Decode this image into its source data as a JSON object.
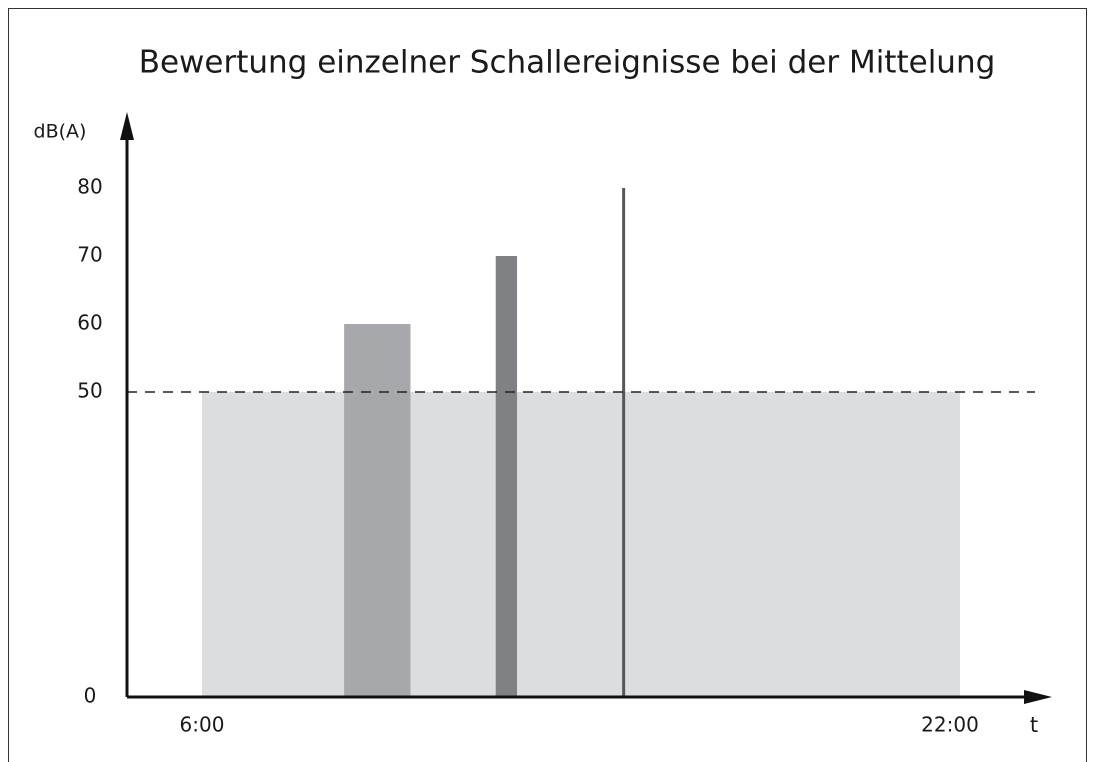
{
  "chart_data": {
    "type": "bar",
    "title": "Bewertung einzelner Schallereignisse bei der Mittelung",
    "ylabel": "dB(A)",
    "xlabel": "t",
    "xlim": [
      6,
      22
    ],
    "xticks": [
      {
        "value": 6,
        "label": "6:00"
      },
      {
        "value": 22,
        "label": "22:00"
      }
    ],
    "ylim": [
      0,
      80
    ],
    "yticks": [
      0,
      50,
      60,
      70,
      80
    ],
    "reference_line": 50,
    "events": [
      {
        "start": 6,
        "end": 22,
        "value": 50,
        "color": "#dcdddf"
      },
      {
        "start": 9,
        "end": 10.4,
        "value": 60,
        "color": "#a7a8ab"
      },
      {
        "start": 12.2,
        "end": 12.65,
        "value": 70,
        "color": "#808184"
      },
      {
        "start": 14.9,
        "end": 14.9,
        "value": 80,
        "color": "#58585a"
      }
    ]
  }
}
